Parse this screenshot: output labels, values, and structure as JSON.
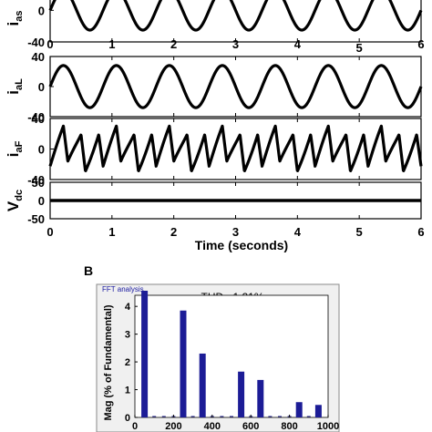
{
  "top_panels": {
    "xlabel": "Time (seconds)",
    "x_ticks": [
      "0",
      "1",
      "2",
      "3",
      "4",
      "5",
      "6"
    ],
    "panels": [
      {
        "label_main": "i",
        "label_sub": "as",
        "y_ticks": [
          "0",
          "-40"
        ]
      },
      {
        "label_main": "i",
        "label_sub": "aL",
        "y_ticks": [
          "40",
          "0",
          "-40"
        ]
      },
      {
        "label_main": "i",
        "label_sub": "aF",
        "y_ticks": [
          "40",
          "0",
          "-40"
        ]
      },
      {
        "label_main": "V",
        "label_sub": "dc",
        "y_ticks": [
          "50",
          "0",
          "-50"
        ]
      }
    ]
  },
  "panel_b": {
    "letter": "B",
    "window_title": "FFT analysis",
    "thd_text": "THD= 1.21%",
    "ylabel": "Mag (% of Fundamental)",
    "y_ticks": [
      "4",
      "3",
      "2",
      "1",
      "0"
    ],
    "x_ticks": [
      "0",
      "200",
      "400",
      "600",
      "800",
      "1000"
    ]
  },
  "chart_data": [
    {
      "type": "line",
      "ylabel": "i_as",
      "x": [
        0,
        6
      ],
      "xlim": [
        0,
        6
      ],
      "ylim": [
        -40,
        20
      ],
      "series": [
        {
          "amplitude": 25,
          "cycles": 7,
          "phase_deg": 0
        }
      ]
    },
    {
      "type": "line",
      "ylabel": "i_aL",
      "xlim": [
        0,
        6
      ],
      "ylim": [
        -40,
        40
      ],
      "series": [
        {
          "amplitude": 28,
          "cycles": 7,
          "phase_deg": 0
        }
      ]
    },
    {
      "type": "line",
      "ylabel": "i_aF",
      "xlim": [
        0,
        6
      ],
      "ylim": [
        -40,
        40
      ],
      "series": [
        {
          "amplitude": 30,
          "cycles": 21,
          "waveform": "distorted sawtooth"
        }
      ]
    },
    {
      "type": "line",
      "ylabel": "V_dc",
      "xlabel": "Time (seconds)",
      "xlim": [
        0,
        6
      ],
      "ylim": [
        -50,
        50
      ],
      "series": [
        {
          "value": 0
        }
      ]
    },
    {
      "type": "bar",
      "title": "THD= 1.21%",
      "ylabel": "Mag (% of Fundamental)",
      "xlim": [
        0,
        1000
      ],
      "ylim": [
        0,
        4.4
      ],
      "x": [
        50,
        250,
        350,
        550,
        650,
        850,
        950
      ],
      "values": [
        4.6,
        3.85,
        2.3,
        1.65,
        1.35,
        0.55,
        0.45
      ]
    }
  ]
}
